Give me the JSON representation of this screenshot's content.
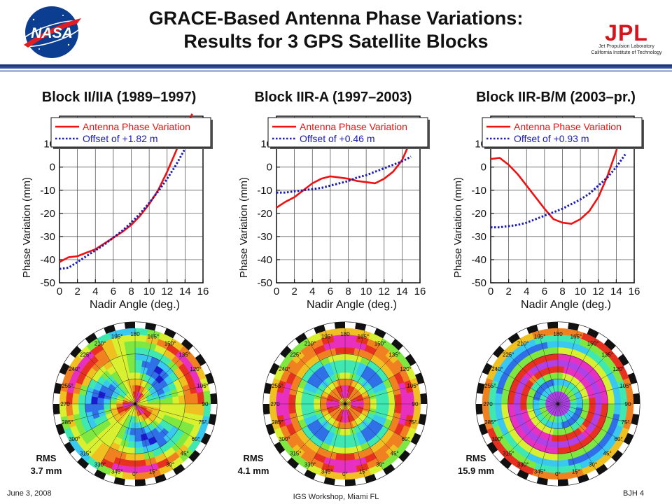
{
  "slide": {
    "title_line1": "GRACE-Based Antenna Phase Variations:",
    "title_line2": "Results for 3 GPS Satellite Blocks",
    "nasa_logo_text": "NASA",
    "jpl_logo": {
      "wordmark": "JPL",
      "line1": "Jet Propulsion Laboratory",
      "line2": "California Institute of Technology"
    },
    "footer": {
      "date": "June 3, 2008",
      "venue": "IGS Workshop, Miami FL",
      "page": "BJH 4"
    },
    "polar": {
      "azimuth_labels": [
        "0°",
        "15°",
        "30°",
        "45°",
        "60°",
        "75°",
        "90",
        "105°",
        "120°",
        "135°",
        "150°",
        "165°",
        "180",
        "195°",
        "210°",
        "225°",
        "240°",
        "255°",
        "270",
        "285°",
        "300°",
        "315°",
        "330°",
        "345°"
      ],
      "colors": [
        "#1a1ad0",
        "#2f6fe8",
        "#38c8f0",
        "#3ee8b0",
        "#7ee840",
        "#d8f030",
        "#f0c020",
        "#f08020",
        "#e83020",
        "#e830c0",
        "#b040e8"
      ]
    }
  },
  "chart_data": [
    {
      "type": "line",
      "panel_title": "Block II/IIA (1989–1997)",
      "xlabel": "Nadir Angle (deg.)",
      "ylabel": "Phase Variation (mm)",
      "xlim": [
        0,
        16
      ],
      "ylim": [
        -50,
        22
      ],
      "xticks": [
        0,
        2,
        4,
        6,
        8,
        10,
        12,
        14,
        16
      ],
      "yticks": [
        -50,
        -40,
        -30,
        -20,
        -10,
        0,
        10
      ],
      "grid": true,
      "legend_position": "top",
      "series": [
        {
          "name": "Antenna Phase Variation",
          "style": "solid",
          "color": "#ee1111",
          "x": [
            0,
            1,
            2,
            3,
            4,
            5,
            6,
            7,
            8,
            9,
            10,
            11,
            12,
            13,
            14,
            14.8
          ],
          "y": [
            -41,
            -39,
            -38.5,
            -37,
            -35.5,
            -33,
            -30.5,
            -28,
            -25,
            -21,
            -16,
            -10,
            -2,
            7,
            17,
            23
          ]
        },
        {
          "name": "Offset of +1.82 m",
          "style": "dotted",
          "color": "#1a1ab4",
          "x": [
            0,
            1,
            2,
            3,
            4,
            5,
            6,
            7,
            8,
            9,
            10,
            11,
            12,
            13,
            14,
            15
          ],
          "y": [
            -44,
            -43.5,
            -41,
            -38.5,
            -36,
            -33.5,
            -30.5,
            -27.5,
            -24,
            -20,
            -15.5,
            -10.5,
            -5,
            1,
            8,
            16
          ]
        }
      ],
      "rms": {
        "label": "RMS",
        "value": "3.7 mm"
      }
    },
    {
      "type": "line",
      "panel_title": "Block IIR-A (1997–2003)",
      "xlabel": "Nadir Angle (deg.)",
      "ylabel": "Phase Variation (mm)",
      "xlim": [
        0,
        16
      ],
      "ylim": [
        -50,
        22
      ],
      "xticks": [
        0,
        2,
        4,
        6,
        8,
        10,
        12,
        14,
        16
      ],
      "yticks": [
        -50,
        -40,
        -30,
        -20,
        -10,
        0,
        10
      ],
      "grid": true,
      "legend_position": "top",
      "series": [
        {
          "name": "Antenna Phase Variation",
          "style": "solid",
          "color": "#ee1111",
          "x": [
            0,
            1,
            2,
            3,
            4,
            5,
            6,
            7,
            8,
            9,
            10,
            11,
            12,
            13,
            14,
            14.8
          ],
          "y": [
            -17.5,
            -15,
            -13,
            -10,
            -7,
            -5,
            -4,
            -4.5,
            -5,
            -6,
            -6.5,
            -7,
            -5,
            -2,
            3,
            10
          ]
        },
        {
          "name": "Offset of +0.46 m",
          "style": "dotted",
          "color": "#1a1ab4",
          "x": [
            0,
            1,
            2,
            3,
            4,
            5,
            6,
            7,
            8,
            9,
            10,
            11,
            12,
            13,
            14,
            15
          ],
          "y": [
            -11,
            -11,
            -10.5,
            -10,
            -9.5,
            -9,
            -8,
            -7,
            -6,
            -4.5,
            -3.5,
            -2,
            -0.5,
            1,
            2.5,
            4.5
          ]
        }
      ],
      "rms": {
        "label": "RMS",
        "value": "4.1 mm"
      }
    },
    {
      "type": "line",
      "panel_title": "Block IIR-B/M (2003–pr.)",
      "xlabel": "Nadir Angle (deg.)",
      "ylabel": "Phase Variation (mm)",
      "xlim": [
        0,
        16
      ],
      "ylim": [
        -50,
        22
      ],
      "xticks": [
        0,
        2,
        4,
        6,
        8,
        10,
        12,
        14,
        16
      ],
      "yticks": [
        -50,
        -40,
        -30,
        -20,
        -10,
        0,
        10
      ],
      "grid": true,
      "legend_position": "top",
      "series": [
        {
          "name": "Antenna Phase Variation",
          "style": "solid",
          "color": "#ee1111",
          "x": [
            0,
            1,
            2,
            3,
            4,
            5,
            6,
            7,
            8,
            9,
            10,
            11,
            12,
            13,
            14,
            14.8
          ],
          "y": [
            3.5,
            4,
            1,
            -3,
            -8,
            -13,
            -18,
            -22.5,
            -24,
            -24.5,
            -22.5,
            -19,
            -13,
            -4,
            7,
            19
          ]
        },
        {
          "name": "Offset of +0.93 m",
          "style": "dotted",
          "color": "#1a1ab4",
          "x": [
            0,
            1,
            2,
            3,
            4,
            5,
            6,
            7,
            8,
            9,
            10,
            11,
            12,
            13,
            14,
            15
          ],
          "y": [
            -26,
            -26,
            -25.5,
            -25,
            -24,
            -22.5,
            -21,
            -19.5,
            -18,
            -16,
            -14,
            -11.5,
            -8,
            -4.5,
            0,
            5.5
          ]
        }
      ],
      "rms": {
        "label": "RMS",
        "value": "15.9 mm"
      }
    }
  ]
}
